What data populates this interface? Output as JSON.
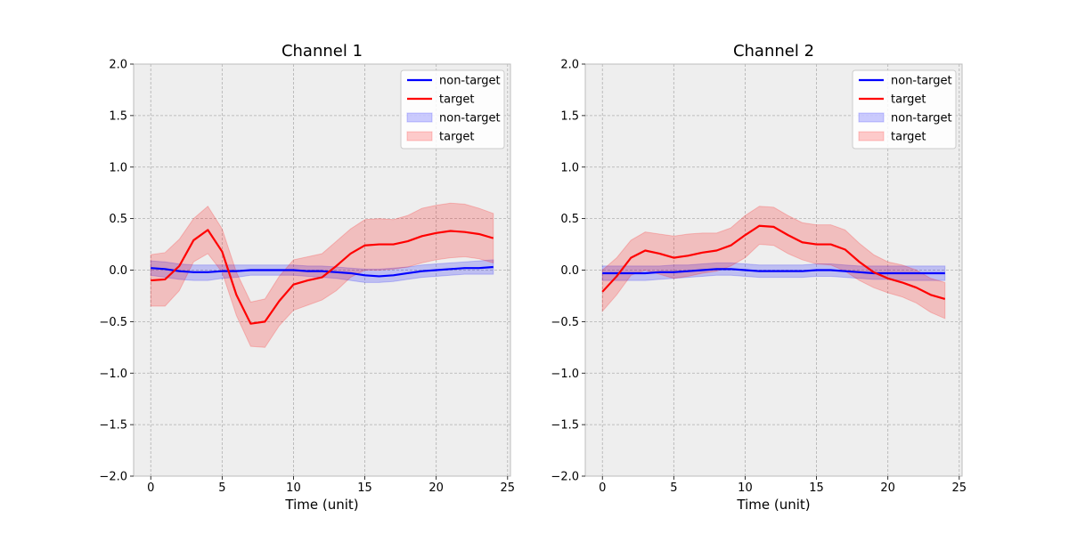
{
  "chart_data": [
    {
      "type": "line",
      "title": "Channel 1",
      "xlabel": "Time (unit)",
      "ylabel": "",
      "xlim": [
        -1.2,
        25.2
      ],
      "ylim": [
        -2.0,
        2.0
      ],
      "xticks": [
        0,
        5,
        10,
        15,
        20,
        25
      ],
      "yticks": [
        -2.0,
        -1.5,
        -1.0,
        -0.5,
        0.0,
        0.5,
        1.0,
        1.5,
        2.0
      ],
      "grid": true,
      "legend": "top-right",
      "x": [
        0,
        1,
        2,
        3,
        4,
        5,
        6,
        7,
        8,
        9,
        10,
        11,
        12,
        13,
        14,
        15,
        16,
        17,
        18,
        19,
        20,
        21,
        22,
        23,
        24
      ],
      "series": [
        {
          "name": "non-target",
          "color": "#0000ff",
          "values": [
            0.02,
            0.01,
            -0.01,
            -0.02,
            -0.02,
            -0.01,
            -0.01,
            0.0,
            0.0,
            0.0,
            0.0,
            -0.01,
            -0.01,
            -0.02,
            -0.03,
            -0.05,
            -0.06,
            -0.05,
            -0.03,
            -0.01,
            0.0,
            0.01,
            0.02,
            0.02,
            0.03
          ],
          "band_lower": [
            -0.05,
            -0.07,
            -0.09,
            -0.1,
            -0.1,
            -0.08,
            -0.07,
            -0.05,
            -0.05,
            -0.05,
            -0.05,
            -0.06,
            -0.07,
            -0.08,
            -0.1,
            -0.12,
            -0.12,
            -0.11,
            -0.09,
            -0.07,
            -0.06,
            -0.05,
            -0.04,
            -0.04,
            -0.04
          ],
          "band_upper": [
            0.09,
            0.08,
            0.06,
            0.05,
            0.05,
            0.05,
            0.05,
            0.05,
            0.05,
            0.05,
            0.05,
            0.04,
            0.04,
            0.03,
            0.02,
            0.01,
            0.01,
            0.02,
            0.03,
            0.05,
            0.06,
            0.07,
            0.08,
            0.09,
            0.1
          ]
        },
        {
          "name": "target",
          "color": "#ff0000",
          "values": [
            -0.1,
            -0.09,
            0.04,
            0.29,
            0.39,
            0.18,
            -0.24,
            -0.52,
            -0.5,
            -0.3,
            -0.14,
            -0.1,
            -0.07,
            0.04,
            0.16,
            0.24,
            0.25,
            0.25,
            0.28,
            0.33,
            0.36,
            0.38,
            0.37,
            0.35,
            0.31
          ],
          "band_lower": [
            -0.35,
            -0.35,
            -0.2,
            0.08,
            0.16,
            -0.02,
            -0.44,
            -0.74,
            -0.75,
            -0.54,
            -0.39,
            -0.34,
            -0.29,
            -0.2,
            -0.07,
            0.0,
            0.0,
            0.01,
            0.03,
            0.07,
            0.1,
            0.12,
            0.13,
            0.11,
            0.07
          ],
          "band_upper": [
            0.15,
            0.17,
            0.3,
            0.5,
            0.62,
            0.4,
            -0.02,
            -0.31,
            -0.28,
            -0.06,
            0.1,
            0.13,
            0.16,
            0.28,
            0.4,
            0.49,
            0.5,
            0.49,
            0.53,
            0.6,
            0.63,
            0.65,
            0.64,
            0.6,
            0.55
          ]
        }
      ],
      "legend_entries": [
        {
          "label": "non-target",
          "kind": "line",
          "color": "#0000ff"
        },
        {
          "label": "target",
          "kind": "line",
          "color": "#ff0000"
        },
        {
          "label": "non-target",
          "kind": "band",
          "color": "#0000ff"
        },
        {
          "label": "target",
          "kind": "band",
          "color": "#ff0000"
        }
      ]
    },
    {
      "type": "line",
      "title": "Channel 2",
      "xlabel": "Time (unit)",
      "ylabel": "",
      "xlim": [
        -1.2,
        25.2
      ],
      "ylim": [
        -2.0,
        2.0
      ],
      "xticks": [
        0,
        5,
        10,
        15,
        20,
        25
      ],
      "yticks": [
        -2.0,
        -1.5,
        -1.0,
        -0.5,
        0.0,
        0.5,
        1.0,
        1.5,
        2.0
      ],
      "grid": true,
      "legend": "top-right",
      "x": [
        0,
        1,
        2,
        3,
        4,
        5,
        6,
        7,
        8,
        9,
        10,
        11,
        12,
        13,
        14,
        15,
        16,
        17,
        18,
        19,
        20,
        21,
        22,
        23,
        24
      ],
      "series": [
        {
          "name": "non-target",
          "color": "#0000ff",
          "values": [
            -0.03,
            -0.03,
            -0.03,
            -0.03,
            -0.02,
            -0.02,
            -0.01,
            0.0,
            0.01,
            0.01,
            0.0,
            -0.01,
            -0.01,
            -0.01,
            -0.01,
            0.0,
            0.0,
            -0.01,
            -0.02,
            -0.03,
            -0.03,
            -0.03,
            -0.03,
            -0.03,
            -0.03
          ],
          "band_lower": [
            -0.1,
            -0.1,
            -0.1,
            -0.1,
            -0.09,
            -0.08,
            -0.07,
            -0.06,
            -0.05,
            -0.05,
            -0.06,
            -0.07,
            -0.07,
            -0.07,
            -0.07,
            -0.06,
            -0.06,
            -0.07,
            -0.08,
            -0.09,
            -0.09,
            -0.1,
            -0.1,
            -0.1,
            -0.1
          ],
          "band_upper": [
            0.04,
            0.04,
            0.04,
            0.04,
            0.04,
            0.05,
            0.05,
            0.06,
            0.07,
            0.07,
            0.06,
            0.05,
            0.05,
            0.05,
            0.05,
            0.06,
            0.06,
            0.05,
            0.04,
            0.04,
            0.04,
            0.04,
            0.04,
            0.04,
            0.04
          ]
        },
        {
          "name": "target",
          "color": "#ff0000",
          "values": [
            -0.21,
            -0.06,
            0.12,
            0.19,
            0.16,
            0.12,
            0.14,
            0.17,
            0.19,
            0.24,
            0.34,
            0.43,
            0.42,
            0.34,
            0.27,
            0.25,
            0.25,
            0.2,
            0.08,
            -0.02,
            -0.08,
            -0.12,
            -0.17,
            -0.24,
            -0.28
          ],
          "band_lower": [
            -0.4,
            -0.24,
            -0.05,
            0.0,
            -0.04,
            -0.08,
            -0.06,
            -0.03,
            -0.01,
            0.04,
            0.12,
            0.25,
            0.24,
            0.16,
            0.1,
            0.06,
            0.05,
            -0.01,
            -0.1,
            -0.17,
            -0.22,
            -0.26,
            -0.32,
            -0.41,
            -0.47
          ],
          "band_upper": [
            0.0,
            0.12,
            0.29,
            0.37,
            0.35,
            0.33,
            0.35,
            0.36,
            0.36,
            0.41,
            0.53,
            0.62,
            0.61,
            0.53,
            0.46,
            0.44,
            0.44,
            0.39,
            0.26,
            0.15,
            0.08,
            0.05,
            0.0,
            -0.08,
            -0.12
          ]
        }
      ],
      "legend_entries": [
        {
          "label": "non-target",
          "kind": "line",
          "color": "#0000ff"
        },
        {
          "label": "target",
          "kind": "line",
          "color": "#ff0000"
        },
        {
          "label": "non-target",
          "kind": "band",
          "color": "#0000ff"
        },
        {
          "label": "target",
          "kind": "band",
          "color": "#ff0000"
        }
      ]
    }
  ]
}
